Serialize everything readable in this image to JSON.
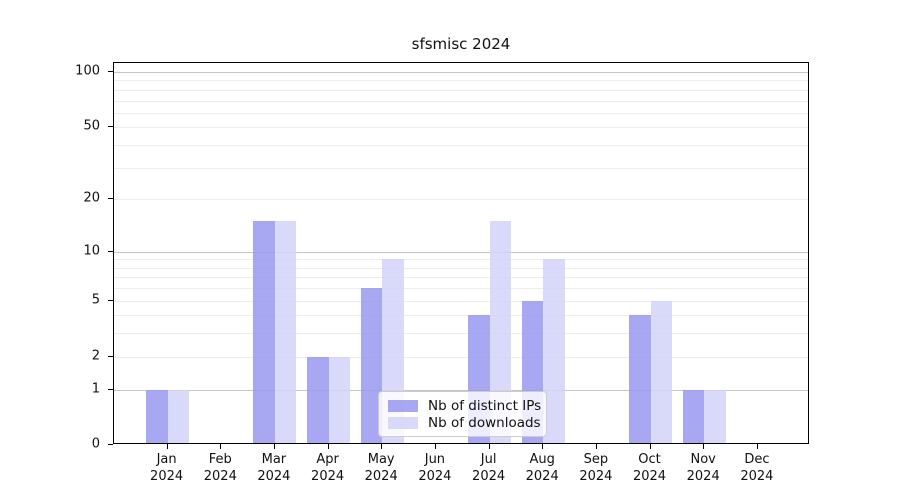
{
  "chart_data": {
    "type": "bar",
    "title": "sfsmisc 2024",
    "categories": [
      "Jan",
      "Feb",
      "Mar",
      "Apr",
      "May",
      "Jun",
      "Jul",
      "Aug",
      "Sep",
      "Oct",
      "Nov",
      "Dec"
    ],
    "x_tick_year_line": "2024",
    "series": [
      {
        "name": "Nb of distinct IPs",
        "color": "#9898f0",
        "values": [
          1,
          0,
          15,
          2,
          6,
          0,
          4,
          5,
          0,
          4,
          1,
          0
        ]
      },
      {
        "name": "Nb of downloads",
        "color": "#d2d2f8",
        "values": [
          1,
          0,
          15,
          2,
          9,
          0,
          15,
          9,
          0,
          5,
          1,
          0
        ]
      }
    ],
    "y_axis": {
      "scale": "log1p",
      "tick_labels": [
        "100",
        "50",
        "20",
        "10",
        "5",
        "2",
        "1",
        "0"
      ],
      "tick_values": [
        100,
        50,
        20,
        10,
        5,
        2,
        1,
        0
      ],
      "major_gridlines": [
        1,
        10,
        100
      ],
      "minor_gridlines": [
        2,
        3,
        4,
        5,
        6,
        7,
        8,
        9,
        20,
        30,
        40,
        50,
        60,
        70,
        80,
        90
      ],
      "ylim": [
        0,
        112
      ]
    },
    "legend": {
      "position": "lower-center",
      "labels": [
        "Nb of distinct IPs",
        "Nb of downloads"
      ]
    },
    "grid": true
  }
}
